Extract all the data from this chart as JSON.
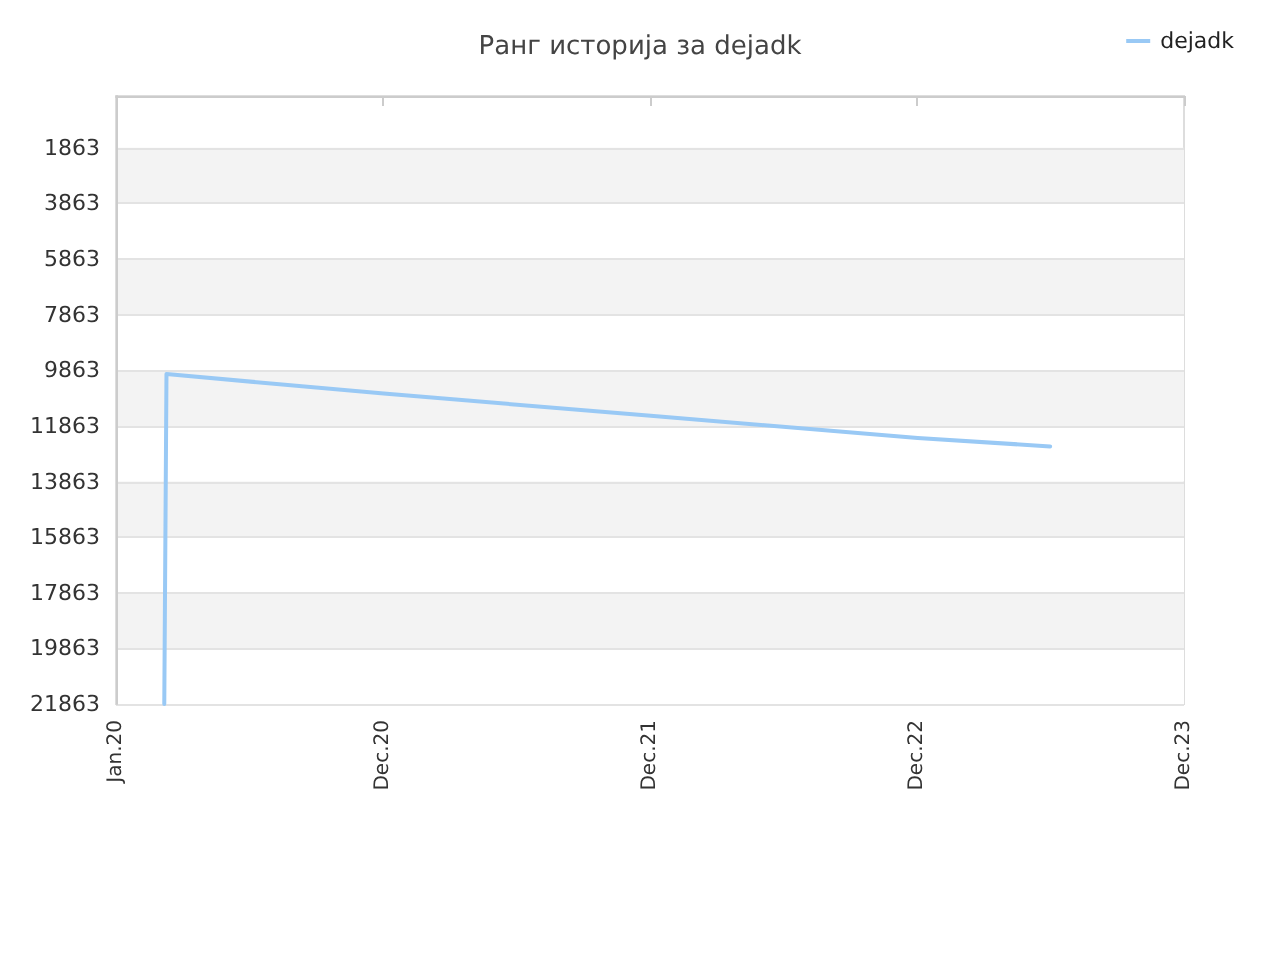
{
  "chart_data": {
    "type": "line",
    "title": "Ранг историја за dejadk",
    "x": [
      "2020-03-07",
      "2020-03-10",
      "2021-01-01",
      "2022-01-01",
      "2023-01-01",
      "2023-07-01"
    ],
    "series": [
      {
        "name": "dejadk",
        "color": "#99c9f5",
        "values": [
          21863,
          10000,
          10700,
          11500,
          12300,
          12600
        ]
      }
    ],
    "xlim": [
      "2020-01-01",
      "2023-12-31"
    ],
    "xticks": [
      {
        "value": "2020-01-01",
        "label": "Jan.20"
      },
      {
        "value": "2020-12-31",
        "label": "Dec.20"
      },
      {
        "value": "2021-12-31",
        "label": "Dec.21"
      },
      {
        "value": "2022-12-31",
        "label": "Dec.22"
      },
      {
        "value": "2023-12-31",
        "label": "Dec.23"
      }
    ],
    "ylim": [
      21863,
      0
    ],
    "yticks": [
      1863,
      3863,
      5863,
      7863,
      9863,
      11863,
      13863,
      15863,
      17863,
      19863,
      21863
    ],
    "grid": "y",
    "legend": "top right",
    "marker": "none",
    "line_style": "solid"
  }
}
